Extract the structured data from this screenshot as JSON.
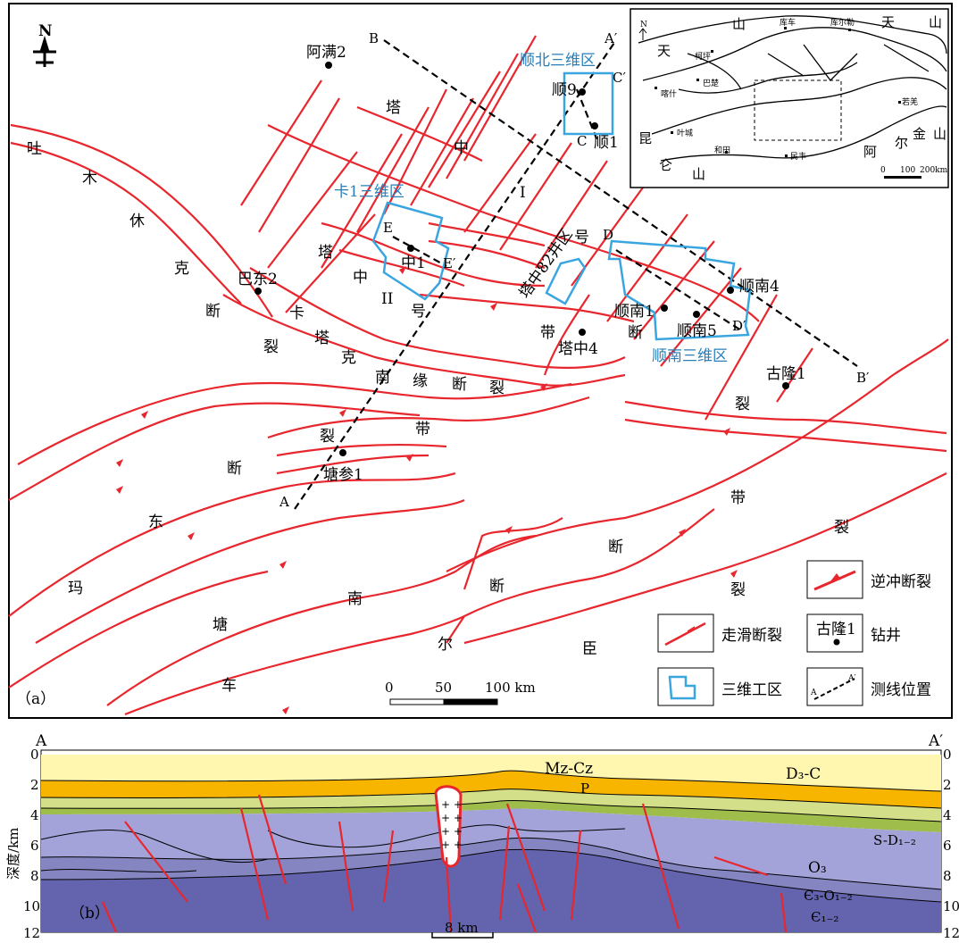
{
  "map_a": {
    "panel_label": "（a）",
    "north": "N",
    "fault_chars": {
      "tumuxiuke": [
        "吐",
        "木",
        "休",
        "克",
        "断",
        "裂"
      ],
      "katake": [
        "卡",
        "塔",
        "克",
        "南",
        "缘",
        "断",
        "裂",
        "带"
      ],
      "tazhong1": [
        "塔",
        "中",
        "I",
        "号",
        "断",
        "裂",
        "带"
      ],
      "tazhong2": [
        "塔",
        "中",
        "II",
        "号"
      ],
      "tazhong82": "塔中82井区",
      "tangbei": [
        "裂",
        "断"
      ],
      "dongmatang": [
        "东",
        "玛",
        "塘",
        "车"
      ],
      "tangnan": [
        "带",
        "裂",
        "断",
        "南",
        "尔",
        "臣",
        "断",
        "裂"
      ],
      "right": [
        "裂"
      ]
    },
    "wells": [
      "阿满2",
      "顺9",
      "顺1",
      "中1",
      "巴东2",
      "塔中4",
      "顺南1",
      "顺南5",
      "顺南4",
      "古隆1",
      "塘参1"
    ],
    "survey_areas": [
      "顺北三维区",
      "卡1三维区",
      "顺南三维区"
    ],
    "line_labels": [
      "A",
      "A′",
      "B",
      "B′",
      "C",
      "C′",
      "D",
      "D′",
      "E",
      "E′"
    ],
    "scale": {
      "ticks": [
        "0",
        "50",
        "100 km"
      ]
    },
    "inset": {
      "labels": [
        "天",
        "山",
        "库车",
        "库尔勒",
        "天",
        "山",
        "柯坪",
        "巴楚",
        "喀什",
        "昆",
        "叶城",
        "仑",
        "和田",
        "山",
        "民丰",
        "若羌",
        "阿",
        "尔",
        "金",
        "山",
        "N"
      ],
      "scale": [
        "0",
        "100",
        "200km"
      ]
    },
    "legend": [
      {
        "symbol": "thrust-fault",
        "label": "逆冲断裂"
      },
      {
        "symbol": "strike-slip-fault",
        "label": "走滑断裂"
      },
      {
        "symbol": "well",
        "label": "钻井",
        "sample": "古隆1"
      },
      {
        "symbol": "3d-survey",
        "label": "三维工区"
      },
      {
        "symbol": "survey-line",
        "label": "测线位置",
        "sample": [
          "A",
          "A′"
        ]
      }
    ]
  },
  "section_b": {
    "panel_label": "（b）",
    "ends": [
      "A",
      "A′"
    ],
    "ylabel": "深度/km",
    "depth_ticks": [
      "0",
      "2",
      "4",
      "6",
      "8",
      "10",
      "12"
    ],
    "right_ticks": [
      "0",
      "2",
      "4",
      "6",
      "8",
      "10",
      "12"
    ],
    "layers": [
      "Mz-Cz",
      "P",
      "D₃-C",
      "S-D₁₋₂",
      "O₃",
      "Є₃-O₁₋₂",
      "Є₁₋₂"
    ],
    "scale": "8 km",
    "colors": {
      "mzcz": "#fff6b0",
      "p": "#f7b500",
      "d3c": "#d4df8a",
      "sd": "#9fbd4a",
      "o3": "#a3a3d9",
      "c3o": "#8585c2",
      "c1": "#6464ae"
    }
  }
}
